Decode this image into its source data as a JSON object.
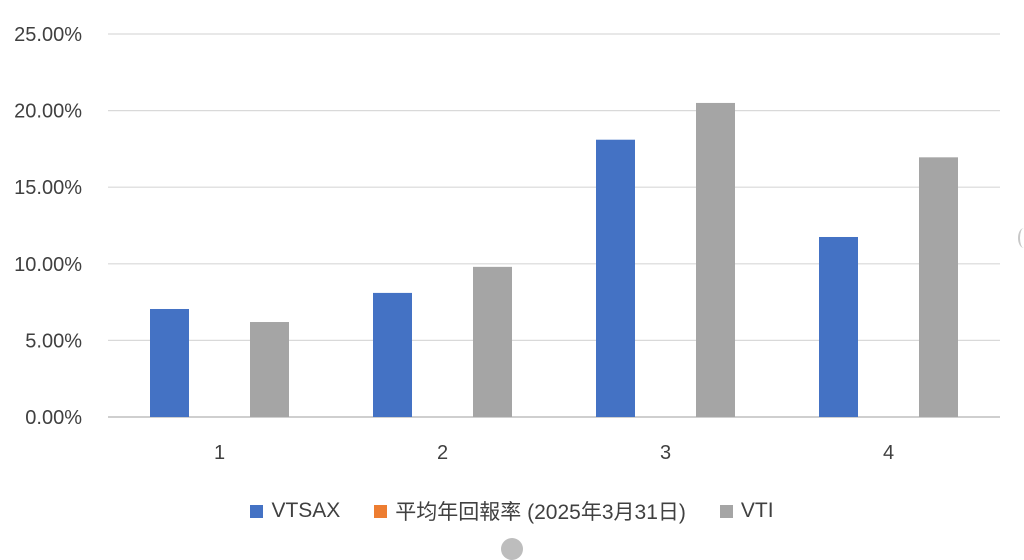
{
  "chart_data": {
    "type": "bar",
    "categories": [
      "1",
      "2",
      "3",
      "4"
    ],
    "series": [
      {
        "name": "VTSAX",
        "color": "#4472C4",
        "values": [
          7.05,
          8.1,
          18.1,
          11.75
        ]
      },
      {
        "name": "平均年回報率 (2025年3月31日)",
        "color": "#ED7D31",
        "values": [
          0,
          0,
          0,
          0
        ]
      },
      {
        "name": "VTI",
        "color": "#A5A5A5",
        "values": [
          6.2,
          9.8,
          20.5,
          16.95
        ]
      }
    ],
    "y_ticks": [
      "0.00%",
      "5.00%",
      "10.00%",
      "15.00%",
      "20.00%",
      "25.00%"
    ],
    "ylim": [
      0,
      25
    ],
    "grid": true,
    "legend_position": "bottom",
    "title": "",
    "xlabel": "",
    "ylabel": ""
  }
}
